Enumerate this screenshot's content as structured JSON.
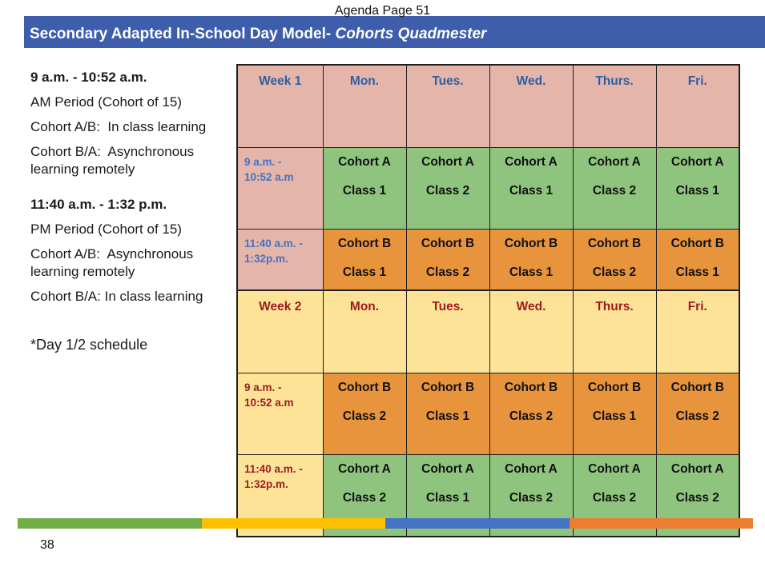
{
  "page": {
    "agenda_label": "Agenda Page 51",
    "page_number": "38"
  },
  "header": {
    "title_regular": "Secondary Adapted In-School Day Model- ",
    "title_italic": "Cohorts Quadmester",
    "bar_color": "#3E5EAB",
    "text_color": "#FFFFFF"
  },
  "notes": {
    "am_time": "9 a.m. - 10:52 a.m.",
    "am_line1": "AM Period (Cohort of 15)",
    "am_line2": "Cohort A/B:  In class learning",
    "am_line3": "Cohort B/A:  Asynchronous learning remotely",
    "pm_time": "11:40 a.m. - 1:32 p.m.",
    "pm_line1": "PM Period (Cohort of 15)",
    "pm_line2": "Cohort A/B:  Asynchronous learning remotely",
    "pm_line3": "Cohort B/A: In class learning",
    "footnote": "*Day 1/2 schedule"
  },
  "tables": [
    {
      "week_label": "Week 1",
      "days": [
        "Mon.",
        "Tues.",
        "Wed.",
        "Thurs.",
        "Fri."
      ],
      "colors": {
        "header_bg": "#E5B5A9",
        "header_text": "#2E5FA3",
        "time_text": "#4472C4",
        "am_row_bg": "#8FC47E",
        "pm_row_bg": "#E8943C"
      },
      "rows": [
        {
          "time": "9 a.m. -\n10:52 a.m",
          "cells": [
            {
              "cohort": "Cohort A",
              "cls": "Class 1"
            },
            {
              "cohort": "Cohort A",
              "cls": "Class 2"
            },
            {
              "cohort": "Cohort A",
              "cls": "Class 1"
            },
            {
              "cohort": "Cohort A",
              "cls": "Class 2"
            },
            {
              "cohort": "Cohort A",
              "cls": "Class 1"
            }
          ]
        },
        {
          "time": "11:40 a.m. -\n1:32p.m.",
          "cells": [
            {
              "cohort": "Cohort B",
              "cls": "Class 1"
            },
            {
              "cohort": "Cohort B",
              "cls": "Class 2"
            },
            {
              "cohort": "Cohort B",
              "cls": "Class 1"
            },
            {
              "cohort": "Cohort B",
              "cls": "Class 2"
            },
            {
              "cohort": "Cohort B",
              "cls": "Class 1"
            }
          ]
        }
      ]
    },
    {
      "week_label": "Week 2",
      "days": [
        "Mon.",
        "Tues.",
        "Wed.",
        "Thurs.",
        "Fri."
      ],
      "colors": {
        "header_bg": "#FDE398",
        "header_text": "#9C1D20",
        "time_text": "#9C1D20",
        "am_row_bg": "#E8943C",
        "pm_row_bg": "#8FC47E"
      },
      "rows": [
        {
          "time": "9 a.m. -\n10:52 a.m",
          "cells": [
            {
              "cohort": "Cohort B",
              "cls": "Class 2"
            },
            {
              "cohort": "Cohort B",
              "cls": "Class 1"
            },
            {
              "cohort": "Cohort B",
              "cls": "Class 2"
            },
            {
              "cohort": "Cohort B",
              "cls": "Class 1"
            },
            {
              "cohort": "Cohort B",
              "cls": "Class 2"
            }
          ]
        },
        {
          "time": "11:40 a.m. -\n1:32p.m.",
          "cells": [
            {
              "cohort": "Cohort A",
              "cls": "Class 2"
            },
            {
              "cohort": "Cohort A",
              "cls": "Class 1"
            },
            {
              "cohort": "Cohort A",
              "cls": "Class 2"
            },
            {
              "cohort": "Cohort A",
              "cls": "Class 2"
            },
            {
              "cohort": "Cohort A",
              "cls": "Class 2"
            }
          ]
        }
      ]
    }
  ],
  "footer_bar": {
    "segment_colors": [
      "#70AD47",
      "#FFC000",
      "#4472C4",
      "#ED7D31"
    ]
  }
}
